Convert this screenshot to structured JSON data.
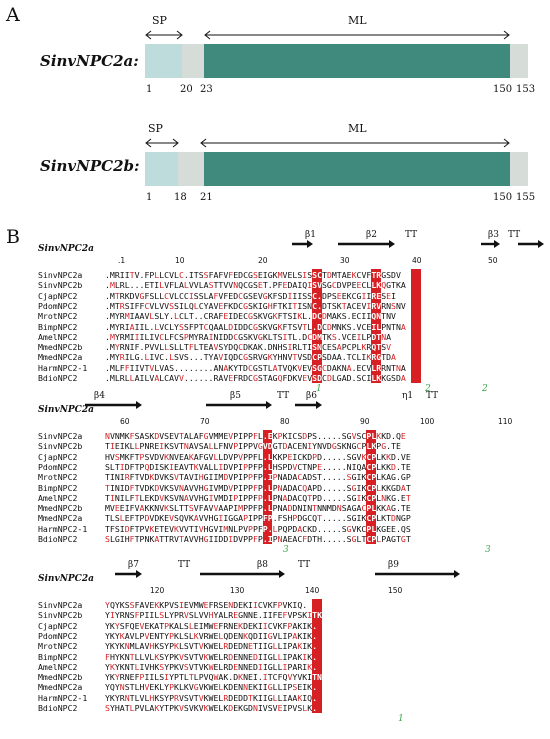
{
  "panelA": {
    "letter": "A",
    "genes": [
      {
        "name": "SinvNPC2a:",
        "sp_label": "SP",
        "ml_label": "ML",
        "ticks": [
          "1",
          "20",
          "23",
          "150",
          "153"
        ]
      },
      {
        "name": "SinvNPC2b:",
        "sp_label": "SP",
        "ml_label": "ML",
        "ticks": [
          "1",
          "18",
          "21",
          "150",
          "155"
        ]
      }
    ],
    "colors": {
      "signal_peptide": "#bfdcdc",
      "linker": "#d6ddd9",
      "mature": "#3f8a7c"
    }
  },
  "panelB": {
    "letter": "B",
    "ref_name": "SinvNPC2a",
    "species": [
      "SinvNPC2a",
      "SinvNPC2b",
      "CjapNPC2",
      "PdomNPC2",
      "MrotNPC2",
      "BimpNPC2",
      "AmelNPC2",
      "MmedNPC2b",
      "MmedNPC2a",
      "HarmNPC2-1",
      "BdioNPC2"
    ],
    "blocks": [
      {
        "ruler": [
          ".1",
          "10",
          "20",
          "30",
          "40",
          "50"
        ],
        "ss": [
          "β1",
          "β2",
          "TT",
          "β3",
          "TT"
        ],
        "rows": [
          ".MRIITV.FPLLCVLC.ITSSFAFVFEDCGSEIGKMVELSISSCTDMTAEKCVFTRGSDV",
          ".MLRL...ETILVFLALVVLASTTVVNQCGSET.PFEDAIQISVSGCDVPEECLLKQGTKA",
          ".MTRKDVGFSLLCVLCCISSLAFVFEDCGSEVGKFSDIIISSC.DPSEEKCGIIRESEI",
          ".MTRSIFFCVLVVSSILQLCYAVEFKDCGSKIGHFTKITISNC.DTSKTACEVIRVRNSNV",
          ".MYRMIAAVLSLY.LCLT..CRAFEIDECGSKVGKFTSIKL.DCDMAKS.ECIIQNTNV",
          ".MYRIAIIL.LVCLYSSFPTCQAALDIDDCGSKVGKFTSVTL.DCDMNKS.VCEILPNTNA",
          ".MYRMIIILIVCLFCSPMYRAINIDDCGSKVGKLTSITL.DCDMTKS.VCEILPDTNA",
          ".MYRNIF.PVVLLSLLTFLTEAVSYDQCDKAK.DNHSIRLTISNCESAPCPLKRQTSV",
          ".MYRILG.LIVC.LSVS...TYAVIQDCGSRVGKYHNVTVSDCPSDAA.TCLIKRGTDA",
          ".MLFFIIVTVLVAS........ANAKYTDCGSTLATVQKVEVSGCDAKNA.ECVLRRNTNA",
          ".MLRLLAILVALCAVV......RAVEFRDCGSTAGQFDKVEVSDCDLGAD.SCILKKGSDA"
        ],
        "cys_marks": [
          "1",
          "2",
          "2"
        ]
      },
      {
        "ruler": [
          "60",
          "70",
          "80",
          "90",
          "100",
          "110"
        ],
        "ss": [
          "β4",
          "β5",
          "TT",
          "β6",
          "η1",
          "TT"
        ],
        "rows": [
          "NVNMKFSASKDVSEVTALAFGVMMEVPIPPFL.EKPKICSDPS.....SGVSCPLKKD.QE",
          "TIEIKLLPNREIKSVTNAVSALLFNVPIPPVGVDGTDACENIYNVDGSKNGCPLKPG.TE",
          "HVSMKFTPSVDVKNVEAKAFGVLLDVPVPPFL.LKKPEICKDPD.....SGVKCPLKKD.VE",
          "SLTIDFTPQDISKIEAVTKVALLIDVPIPPFP.LHSPDVCTNPE.....NIQACPLKKD.TE",
          "TINIRFTVDKDVKSVTAVIHGIIMDVPIPPFP.IPNADACADST.....SGIKCPLKAG.GP",
          "TINIDFTVDKDVKSVNAVVHGIVMDVPIPPFP.LPNADACQAPD.....SGIKCPLKKGDAT",
          "TINILFTLEKDVKSVNAVVHGIVMDIPIPPFP.LPNADACQTPD.....SGIKCPLNKG.ET",
          "MVEEIFVAKKNVKSLTTSVFAVVAAPIMPPFP.LPNADDNINTNNMDNSAGACPLKKAG.TE",
          "TLSLEFTPDVDKEVSQVKAVVHGIIGGAPIPPFP.FSHPDGCQT.....SGIKCPLKTDNGP",
          "TFSIDFTPVKETEVKVVTIVHGVIMNLPVPPFP.LPQPDACKD.....SGVKCPLKGEE.QS",
          "SLGIHFTPNKATTRVTAVVHGIIDDIDVPPFP.IPNAEACFDTH.....SGLTCPLPAGTGT"
        ],
        "cys_marks": [
          "3",
          "3"
        ]
      },
      {
        "ruler": [
          "120",
          "130",
          "140",
          "150"
        ],
        "ss": [
          "β7",
          "TT",
          "β8",
          "TT",
          "β9"
        ],
        "rows": [
          "YQYKSSFAVEKKPVSIEVMWEFRSENDEKIICVKFPVKIQ.",
          "YIYRNSFPIILSLYPRVSLVVHYALREGNNE.IIFEFVPSKITK",
          "YKYSFQEVEKATPKALSLEIMWEFRNEKDEKIICVKFPAKIK.",
          "YKYKAVLPVENTYPKLSLKVRWELQDENKQDIIGVLIPAKIK.",
          "YKYKNMLAVHKSYPKLSVTVKWELRDEDNETIIGLLIPAKIK.",
          "FHYKNTLLVLKSYPKVSVTVKWELRDENNEDIIGLLIPAKIK.",
          "YKYKNTLIVHKSYPKVSVTVKWELRDENNEDIIGLLIPARIK.",
          "YKYRNEFPIILSIYPTLTLPVQWAK.DKNEI.ITCFQVYVKITN",
          "YQYNSTLHVEKLYPKLKVGVKWELKDENNEKIIGLLIPSEIK.",
          "YKYRNTLVLHKSYPRVSVTVKWELRDEDDTKIIGLLIAAKIQ.",
          "SYHATLPVLAKYTPKVSVKVKWELKDEKGDNIVSVEIPVSLK."
        ],
        "cys_marks": [
          "1"
        ]
      }
    ]
  }
}
